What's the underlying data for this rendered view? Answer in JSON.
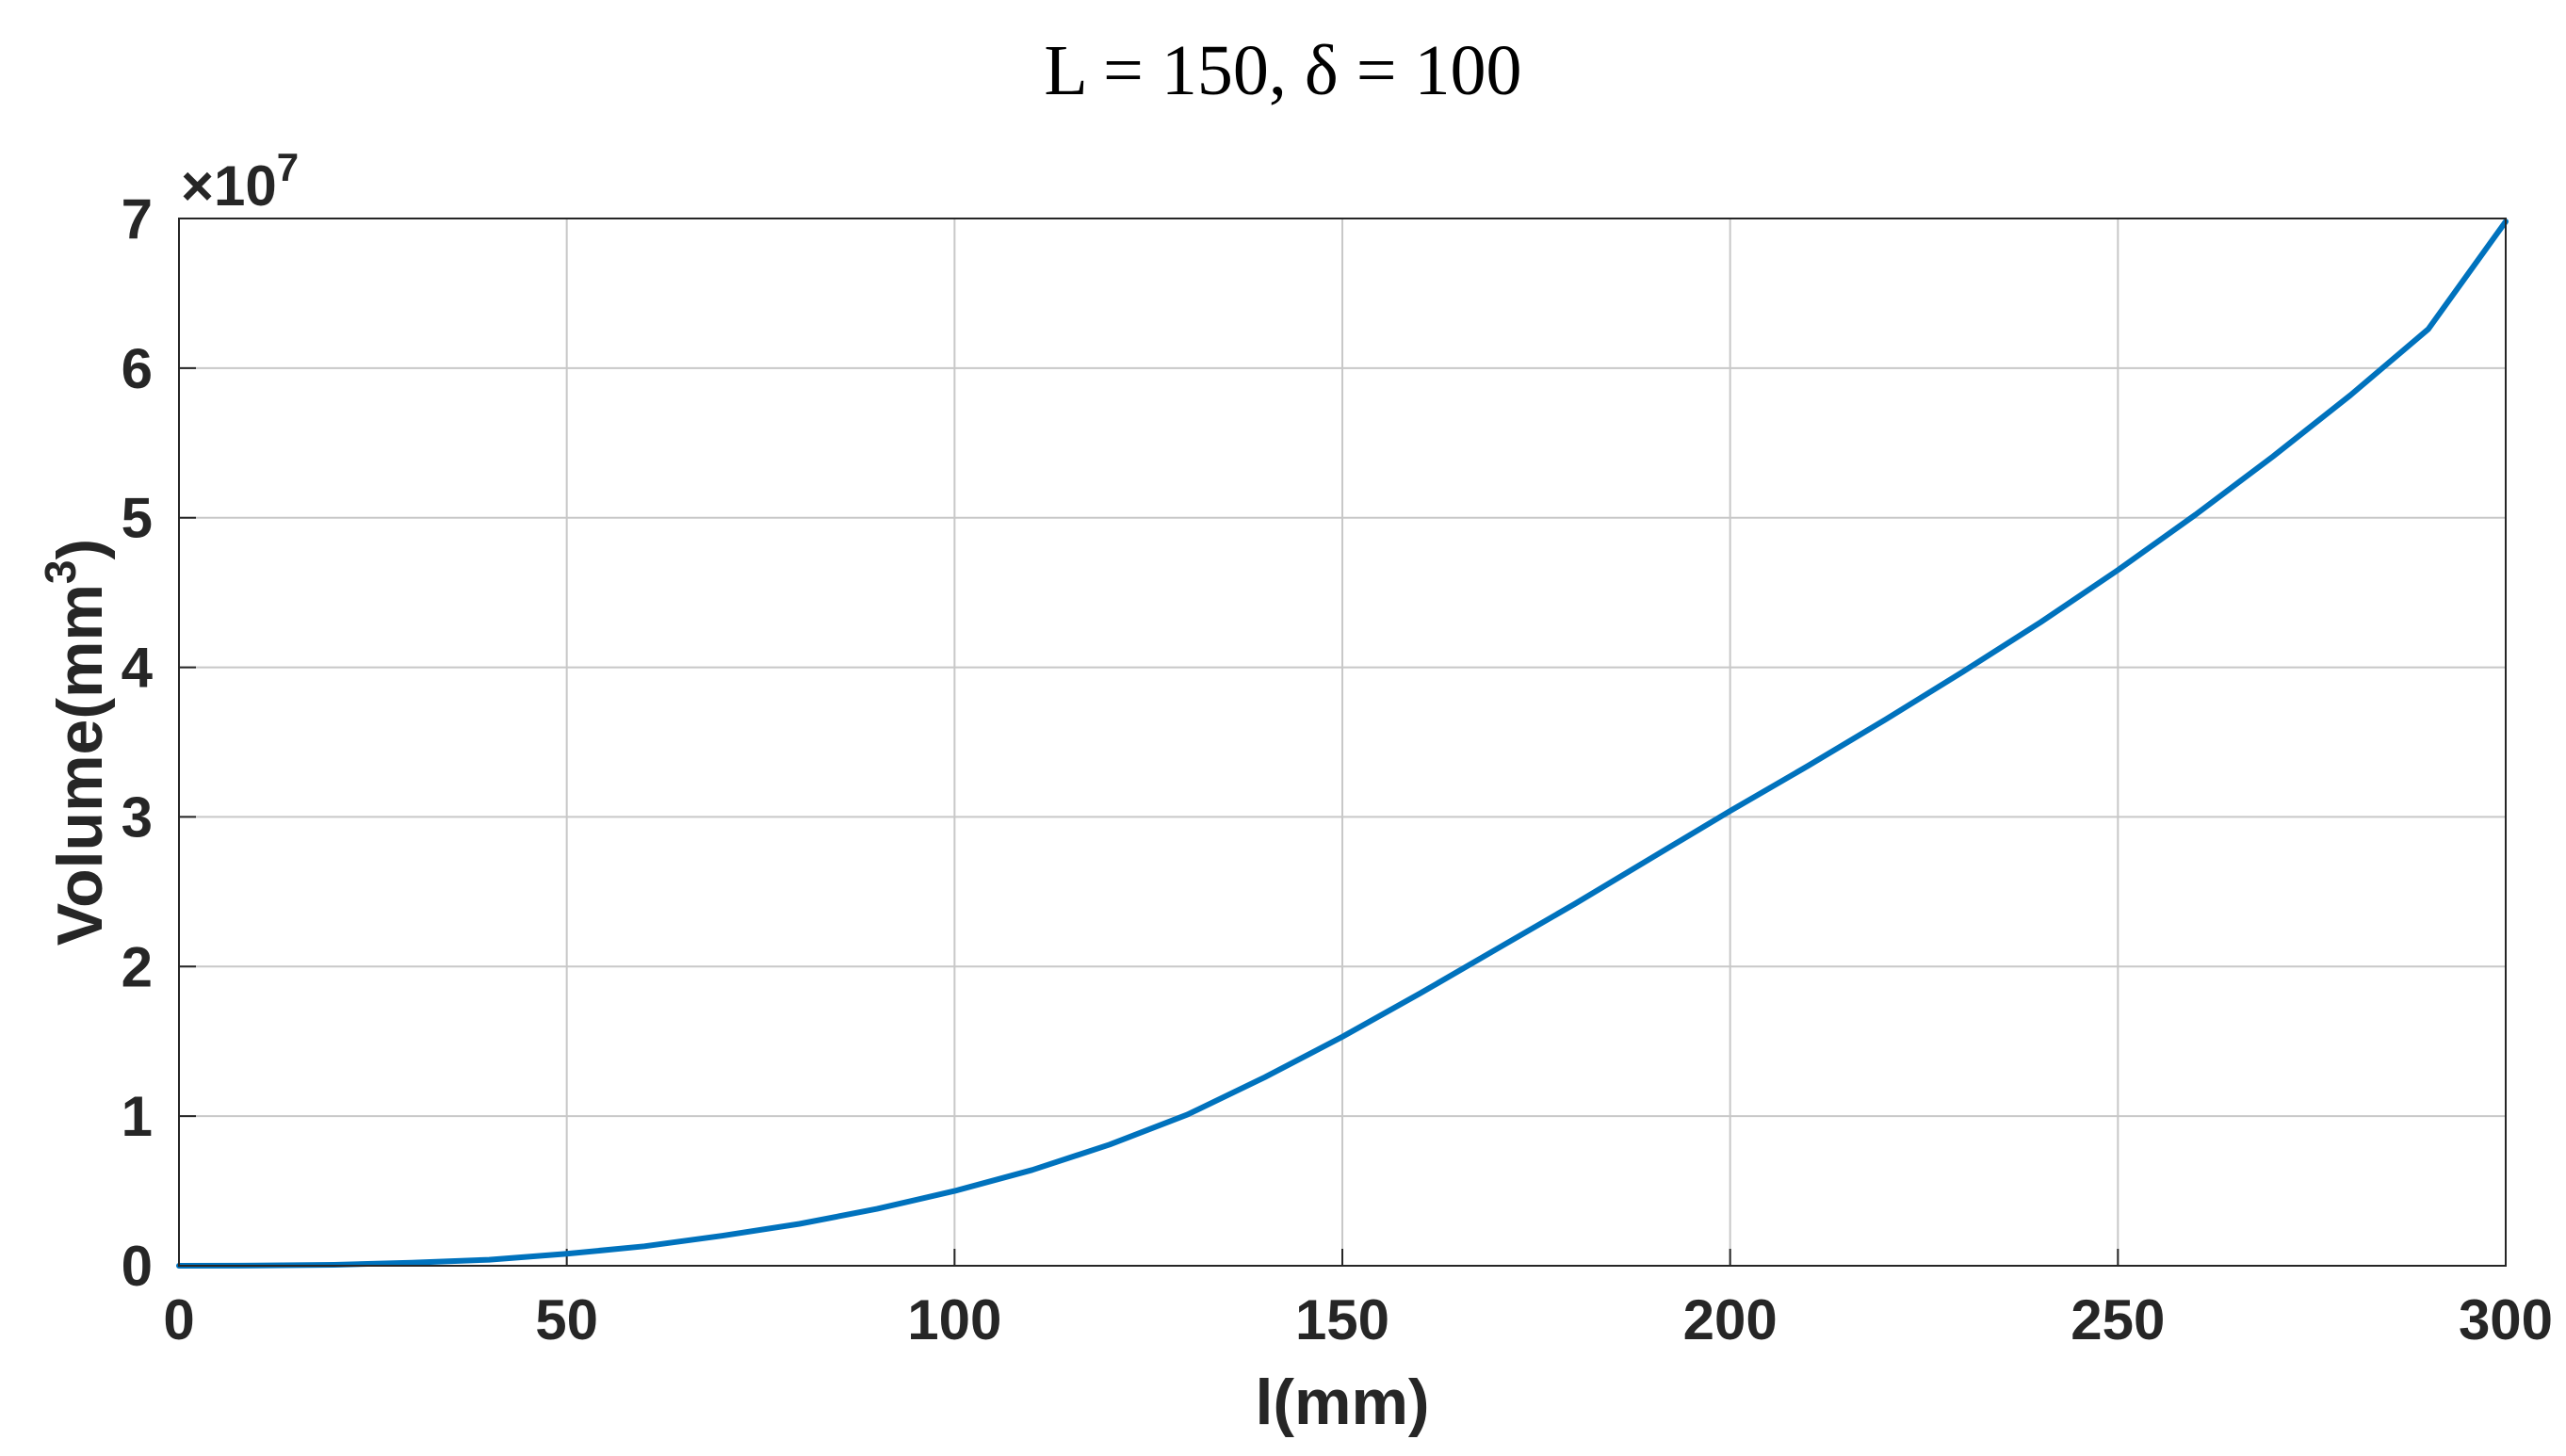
{
  "chart_data": {
    "type": "line",
    "title": "L = 150,  δ  = 100",
    "xlabel": "l(mm)",
    "ylabel": "Volume(mm",
    "ylabel_superscript": "3",
    "ylabel_suffix": ")",
    "y_multiplier": "×10",
    "y_multiplier_exponent": "7",
    "xlim": [
      0,
      300
    ],
    "ylim": [
      0,
      7
    ],
    "xticks": [
      "0",
      "50",
      "100",
      "150",
      "200",
      "250",
      "300"
    ],
    "yticks": [
      "0",
      "1",
      "2",
      "3",
      "4",
      "5",
      "6",
      "7"
    ],
    "grid": true,
    "series": [
      {
        "color": "#0072BD",
        "x": [
          0,
          10,
          20,
          30,
          40,
          50,
          60,
          70,
          80,
          90,
          100,
          110,
          120,
          130,
          140,
          150,
          160,
          170,
          180,
          190,
          200,
          210,
          220,
          230,
          240,
          250,
          260,
          270,
          280,
          290,
          300
        ],
        "y": [
          0,
          0.001,
          0.006,
          0.02,
          0.04,
          0.08,
          0.13,
          0.2,
          0.28,
          0.38,
          0.5,
          0.64,
          0.81,
          1.01,
          1.26,
          1.53,
          1.82,
          2.12,
          2.42,
          2.73,
          3.04,
          3.34,
          3.65,
          3.97,
          4.3,
          4.65,
          5.02,
          5.41,
          5.82,
          6.26,
          6.98
        ]
      }
    ]
  }
}
